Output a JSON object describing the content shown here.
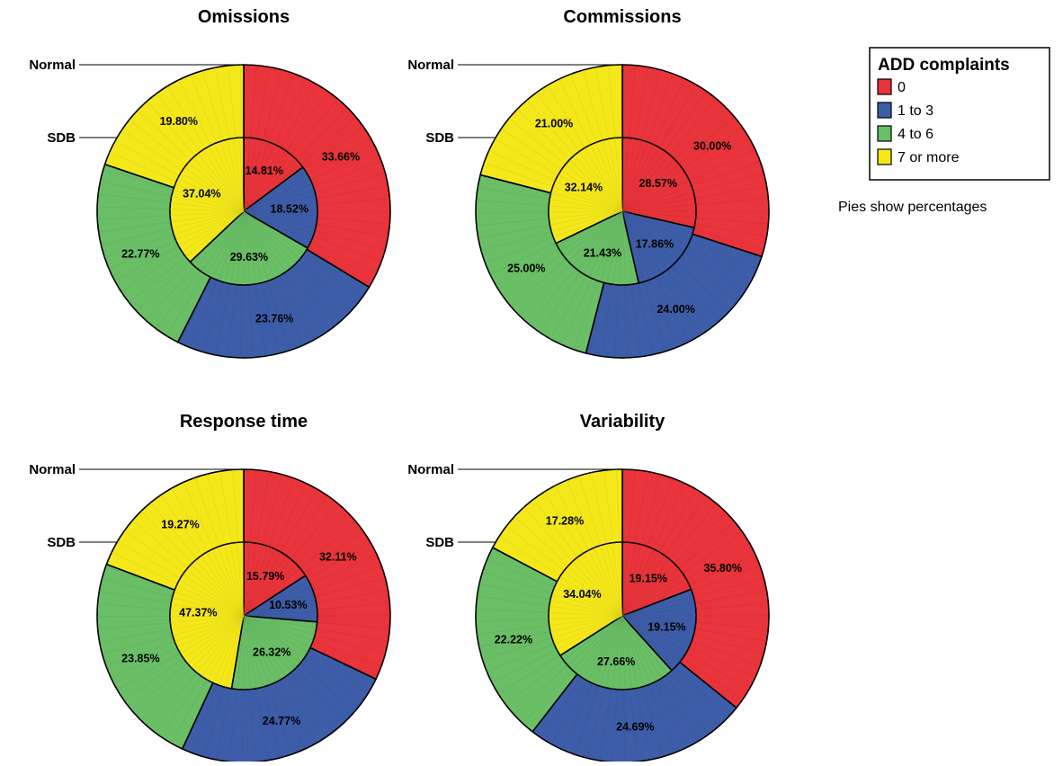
{
  "chart_data": {
    "type": "pie",
    "variant": "nested-donut",
    "ring_labels": {
      "outer": "Normal",
      "inner": "SDB"
    },
    "categories": [
      "0",
      "1 to 3",
      "4 to 6",
      "7 or more"
    ],
    "colors": [
      "#e8343a",
      "#3e5da8",
      "#6abf66",
      "#f4e81a"
    ],
    "legend": {
      "title": "ADD complaints",
      "placement": "top-right",
      "items": [
        "0",
        "1 to 3",
        "4 to 6",
        "7 or more"
      ]
    },
    "note": "Pies show percentages",
    "panels": [
      {
        "title": "Omissions",
        "outer": {
          "values": [
            33.66,
            23.76,
            22.77,
            19.8
          ],
          "labels": [
            "33.66%",
            "23.76%",
            "22.77%",
            "19.80%"
          ]
        },
        "inner": {
          "values": [
            14.81,
            18.52,
            29.63,
            37.04
          ],
          "labels": [
            "14.81%",
            "18.52%",
            "29.63%",
            "37.04%"
          ]
        }
      },
      {
        "title": "Commissions",
        "outer": {
          "values": [
            30.0,
            24.0,
            25.0,
            21.0
          ],
          "labels": [
            "30.00%",
            "24.00%",
            "25.00%",
            "21.00%"
          ]
        },
        "inner": {
          "values": [
            28.57,
            17.86,
            21.43,
            32.14
          ],
          "labels": [
            "28.57%",
            "17.86%",
            "21.43%",
            "32.14%"
          ]
        }
      },
      {
        "title": "Response time",
        "outer": {
          "values": [
            32.11,
            24.77,
            23.85,
            19.27
          ],
          "labels": [
            "32.11%",
            "24.77%",
            "23.85%",
            "19.27%"
          ]
        },
        "inner": {
          "values": [
            15.79,
            10.53,
            26.32,
            47.37
          ],
          "labels": [
            "15.79%",
            "10.53%",
            "26.32%",
            "47.37%"
          ]
        }
      },
      {
        "title": "Variability",
        "outer": {
          "values": [
            35.8,
            24.69,
            22.22,
            17.28
          ],
          "labels": [
            "35.80%",
            "24.69%",
            "22.22%",
            "17.28%"
          ]
        },
        "inner": {
          "values": [
            19.15,
            19.15,
            27.66,
            34.04
          ],
          "labels": [
            "19.15%",
            "19.15%",
            "27.66%",
            "34.04%"
          ]
        }
      }
    ]
  }
}
